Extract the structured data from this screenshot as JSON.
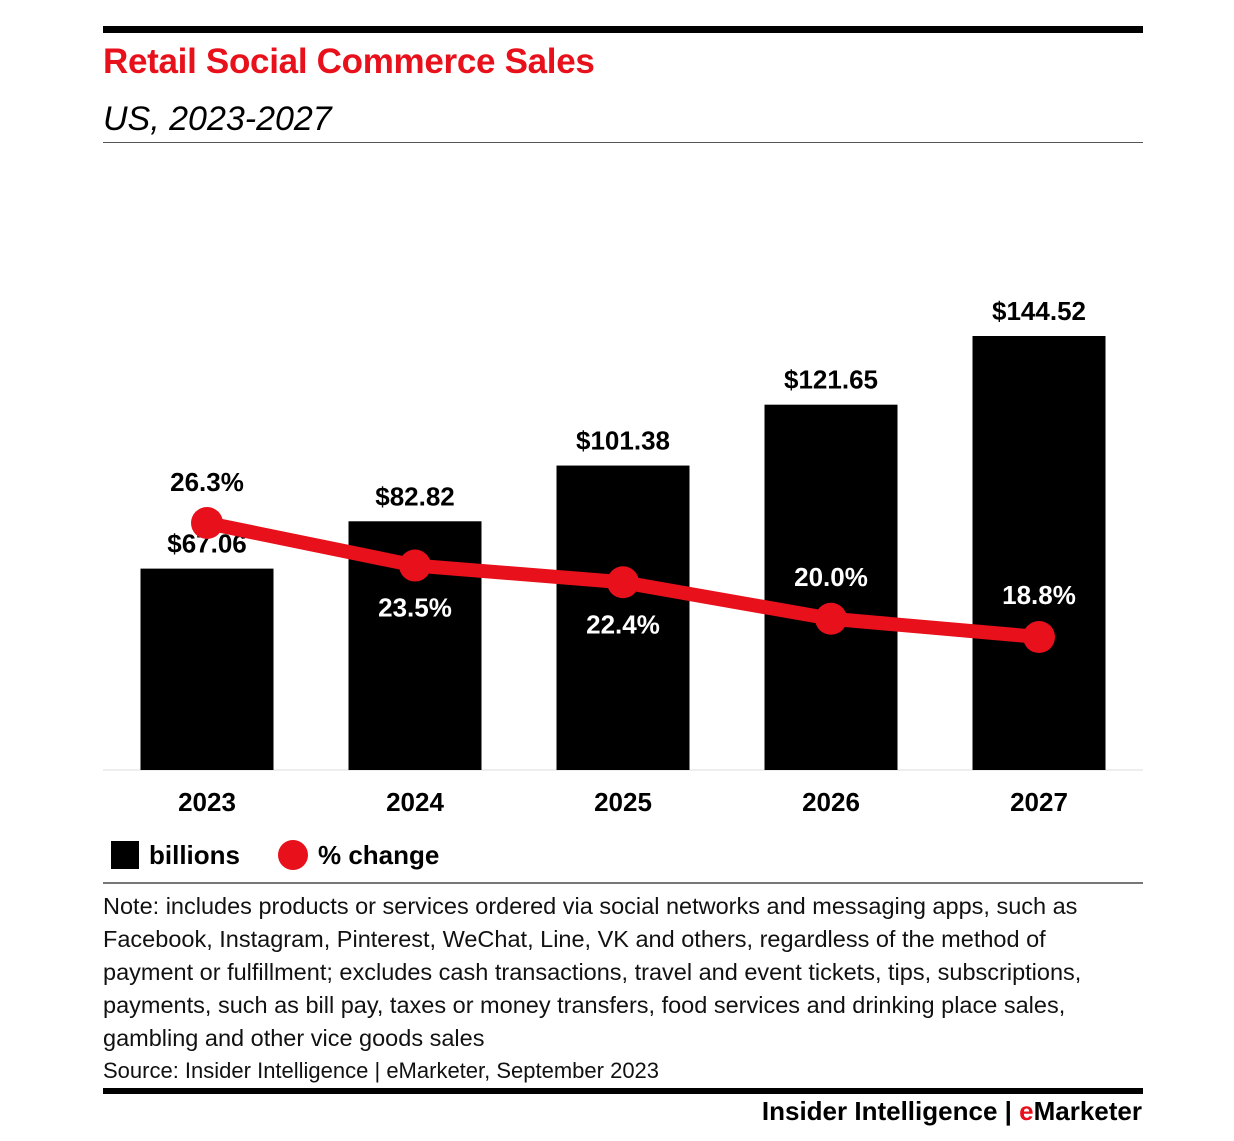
{
  "header": {
    "title": "Retail Social Commerce Sales",
    "subtitle": "US, 2023-2027"
  },
  "chart_data": {
    "type": "bar",
    "title": "Retail Social Commerce Sales",
    "subtitle": "US, 2023-2027",
    "categories": [
      "2023",
      "2024",
      "2025",
      "2026",
      "2027"
    ],
    "series": [
      {
        "name": "billions",
        "type": "bar",
        "values": [
          67.06,
          82.82,
          101.38,
          121.65,
          144.52
        ],
        "labels": [
          "$67.06",
          "$82.82",
          "$101.38",
          "$121.65",
          "$144.52"
        ]
      },
      {
        "name": "% change",
        "type": "line",
        "values": [
          26.3,
          23.5,
          22.4,
          20.0,
          18.8
        ],
        "labels": [
          "26.3%",
          "23.5%",
          "22.4%",
          "20.0%",
          "18.8%"
        ]
      }
    ],
    "xlabel": "",
    "ylabel": "",
    "ylim": [
      0,
      144.52
    ],
    "y2lim": [
      0,
      26.3
    ],
    "grid": false,
    "legend_position": "bottom-left"
  },
  "legend": {
    "bars_label": "billions",
    "line_label": "% change"
  },
  "note": "Note: includes products or services ordered via social networks and messaging apps, such as Facebook, Instagram, Pinterest, WeChat, Line, VK and others, regardless of the method of payment or fulfillment; excludes cash transactions, travel and event tickets, tips, subscriptions, payments, such as bill pay, taxes or money transfers, food services and drinking place sales, gambling and other vice goods sales",
  "source": "Source: Insider Intelligence | eMarketer, September 2023",
  "brand": {
    "prefix": "Insider Intelligence | ",
    "accent_letter": "e",
    "suffix": "Marketer"
  },
  "colors": {
    "accent": "#e8101a",
    "bar": "#000000",
    "text": "#000000"
  }
}
